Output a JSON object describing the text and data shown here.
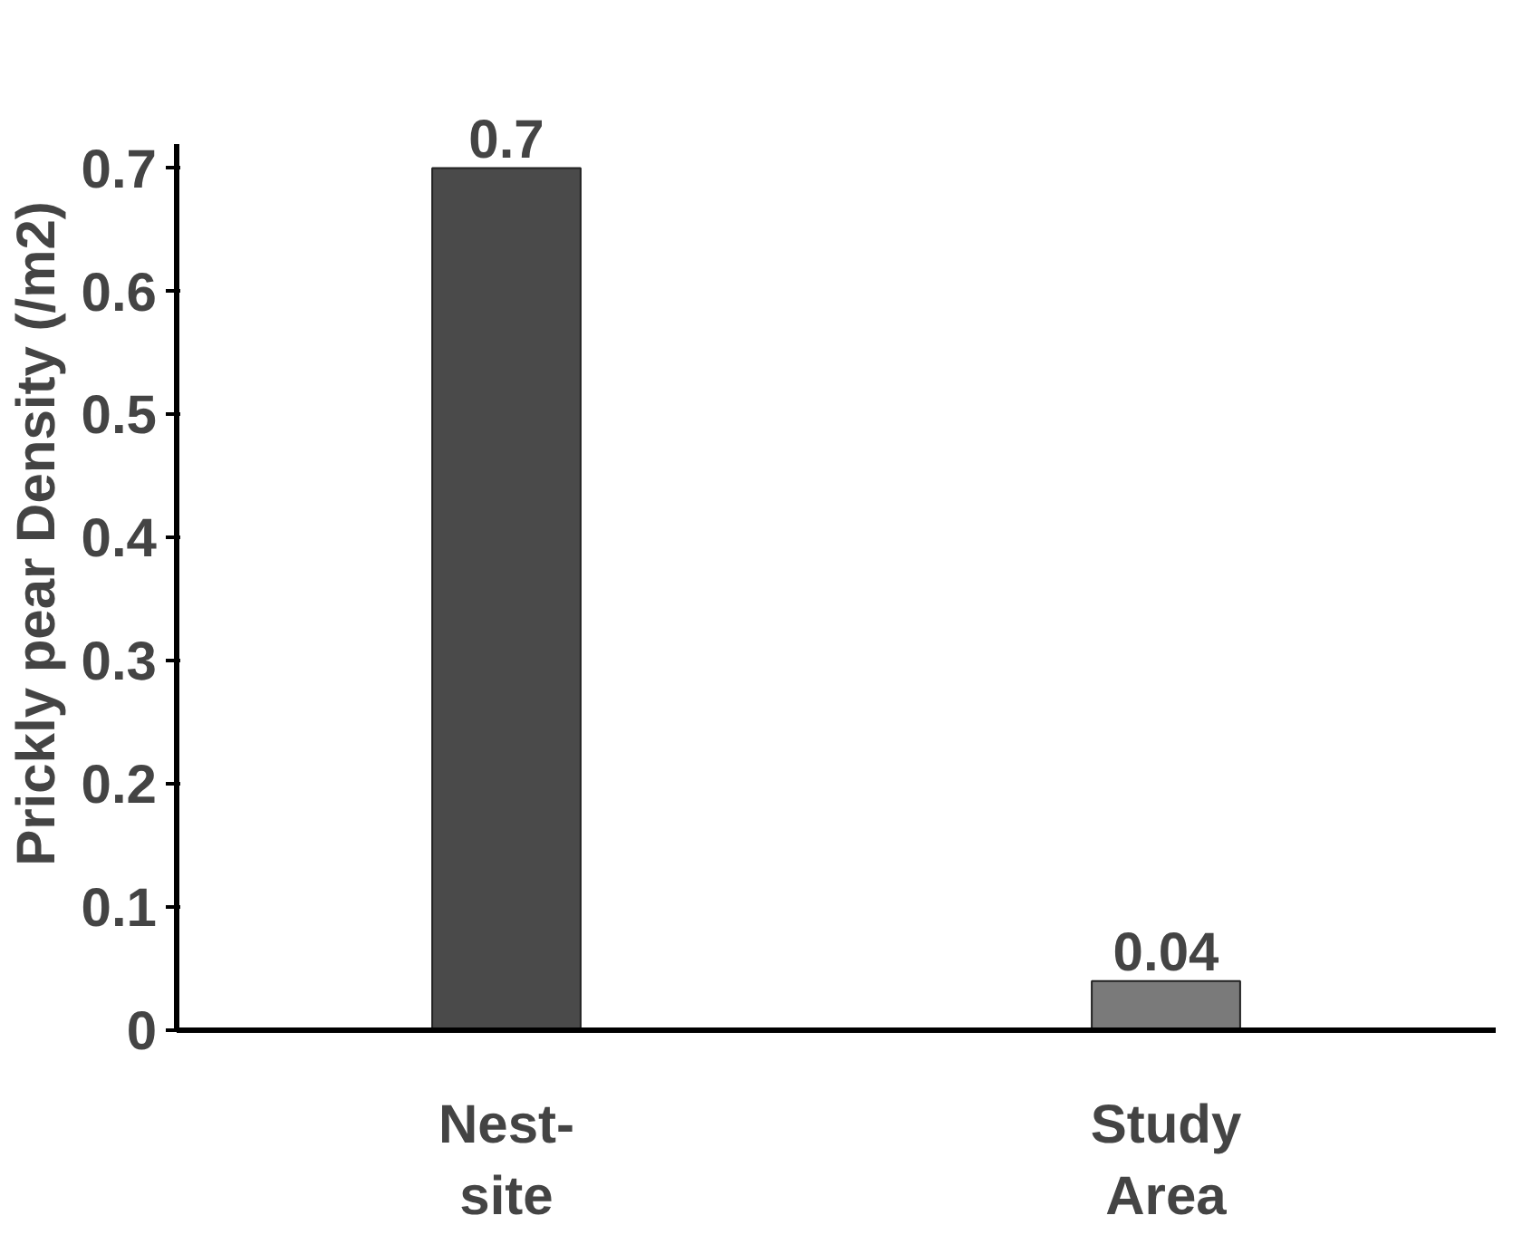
{
  "chart_data": {
    "type": "bar",
    "ylabel": "Prickly pear Density (/m2)",
    "categories": [
      "Nest-\nsite",
      "Study\nArea"
    ],
    "values": [
      0.7,
      0.04
    ],
    "colors": [
      "#4a4a4a",
      "#7a7a7a"
    ],
    "ylim": [
      0,
      0.72
    ],
    "yticks": [
      0,
      0.1,
      0.2,
      0.3,
      0.4,
      0.5,
      0.6,
      0.7
    ],
    "data_labels": true
  }
}
